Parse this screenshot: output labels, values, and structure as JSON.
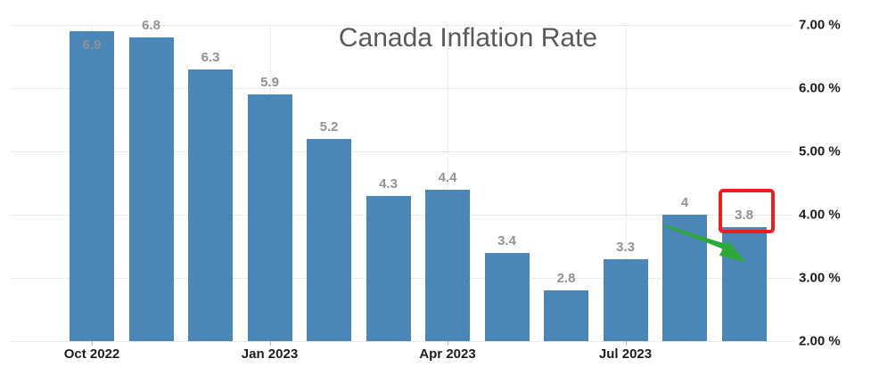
{
  "chart_data": {
    "type": "bar",
    "title": "Canada Inflation Rate",
    "values": [
      6.9,
      6.8,
      6.3,
      5.9,
      5.2,
      4.3,
      4.4,
      3.4,
      2.8,
      3.3,
      4,
      3.8
    ],
    "bar_labels": [
      "6.9",
      "6.8",
      "6.3",
      "5.9",
      "5.2",
      "4.3",
      "4.4",
      "3.4",
      "2.8",
      "3.3",
      "4",
      "3.8"
    ],
    "x_tick_labels": [
      "Oct 2022",
      "Jan 2023",
      "Apr 2023",
      "Jul 2023"
    ],
    "x_tick_bar_indices": [
      0,
      3,
      6,
      9
    ],
    "y_tick_labels": [
      "7.00 %",
      "6.00 %",
      "5.00 %",
      "4.00 %",
      "3.00 %",
      "2.00 %"
    ],
    "y_tick_values": [
      7,
      6,
      5,
      4,
      3,
      2
    ],
    "ylim": [
      2,
      7
    ],
    "grid": "dotted",
    "legend": "none",
    "bar_color": "#4a86b8",
    "label_color": "#929292",
    "axis_text_color": "#1d1d1d",
    "title_color": "#58595b"
  },
  "annotations": {
    "highlighted_value": "3.8",
    "highlight_box_color": "#ec1f1f",
    "arrow_color": "#2ea836",
    "arrow_description": "green arrow pointing down-right at last bar"
  }
}
